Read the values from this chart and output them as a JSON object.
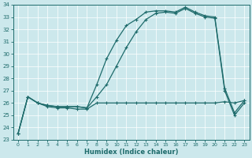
{
  "xlabel": "Humidex (Indice chaleur)",
  "background_color": "#cce8ec",
  "grid_color": "#ffffff",
  "line_color": "#1e6b6b",
  "xlim": [
    -0.5,
    23.5
  ],
  "ylim": [
    23,
    34
  ],
  "yticks": [
    23,
    24,
    25,
    26,
    27,
    28,
    29,
    30,
    31,
    32,
    33,
    34
  ],
  "xticks": [
    0,
    1,
    2,
    3,
    4,
    5,
    6,
    7,
    8,
    9,
    10,
    11,
    12,
    13,
    14,
    15,
    16,
    17,
    18,
    19,
    20,
    21,
    22,
    23
  ],
  "line1_x": [
    0,
    1,
    2,
    3,
    4,
    5,
    6,
    7,
    8,
    9,
    10,
    11,
    12,
    13,
    14,
    15,
    16,
    17,
    18,
    19,
    20,
    21,
    22,
    23
  ],
  "line1_y": [
    23.5,
    26.5,
    26.0,
    25.8,
    25.7,
    25.7,
    25.7,
    25.6,
    27.5,
    29.6,
    31.1,
    32.3,
    32.8,
    33.4,
    33.5,
    33.5,
    33.4,
    33.8,
    33.4,
    33.1,
    33.0,
    27.2,
    25.2,
    26.2
  ],
  "line2_x": [
    0,
    1,
    2,
    3,
    4,
    5,
    6,
    7,
    8,
    9,
    10,
    11,
    12,
    13,
    14,
    15,
    16,
    17,
    18,
    19,
    20,
    21,
    22,
    23
  ],
  "line2_y": [
    23.5,
    26.5,
    26.0,
    25.8,
    25.7,
    25.7,
    25.7,
    25.6,
    26.5,
    27.5,
    29.0,
    30.5,
    31.8,
    32.8,
    33.3,
    33.4,
    33.3,
    33.7,
    33.3,
    33.0,
    32.9,
    27.0,
    25.0,
    26.0
  ],
  "line3_x": [
    0,
    1,
    2,
    3,
    4,
    5,
    6,
    7,
    8,
    9,
    10,
    11,
    12,
    13,
    14,
    15,
    16,
    17,
    18,
    19,
    20,
    21,
    22,
    23
  ],
  "line3_y": [
    23.5,
    26.5,
    26.0,
    25.7,
    25.6,
    25.6,
    25.5,
    25.5,
    26.0,
    26.0,
    26.0,
    26.0,
    26.0,
    26.0,
    26.0,
    26.0,
    26.0,
    26.0,
    26.0,
    26.0,
    26.0,
    26.1,
    26.0,
    26.2
  ],
  "xlabel_fontsize": 6,
  "tick_fontsize": 5,
  "linewidth": 0.9,
  "markersize": 3
}
